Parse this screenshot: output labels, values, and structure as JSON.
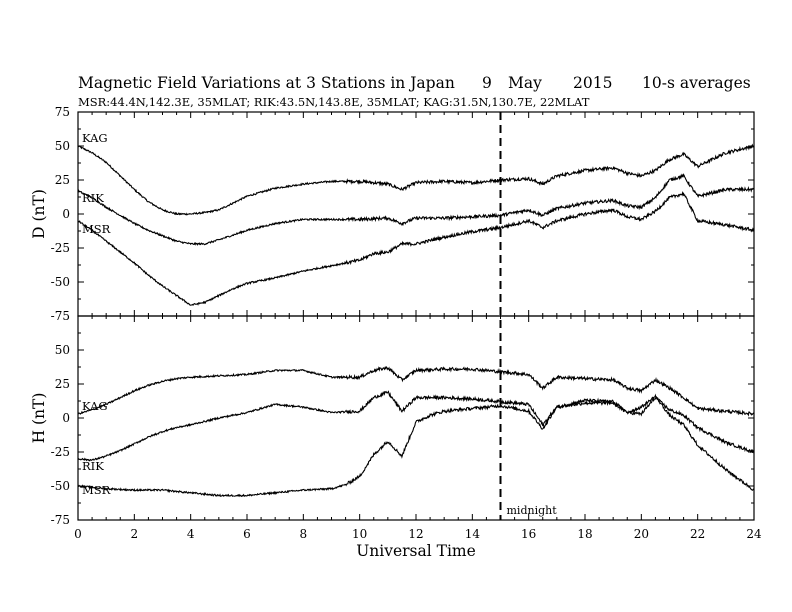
{
  "chart_data": {
    "type": "line",
    "title": "Magnetic Field Variations at 3 Stations in Japan",
    "date_label": {
      "day": "9",
      "month": "May",
      "year": "2015"
    },
    "averaging": "10-s averages",
    "stations_line": "MSR:44.4N,142.3E, 35MLAT;  RIK:43.5N,143.8E, 35MLAT;  KAG:31.5N,130.7E, 22MLAT",
    "xlabel": "Universal Time",
    "xlim": [
      0,
      24
    ],
    "x_ticks": [
      "0",
      "2",
      "4",
      "6",
      "8",
      "10",
      "12",
      "14",
      "16",
      "18",
      "20",
      "22",
      "24"
    ],
    "grid": false,
    "marker_line": {
      "x": 15,
      "label": "midnight"
    },
    "panels": [
      {
        "ylabel": "D (nT)",
        "ylim": [
          -75,
          75
        ],
        "y_ticks": [
          "75",
          "50",
          "25",
          "0",
          "-25",
          "-50",
          "-75"
        ],
        "series": [
          {
            "name": "KAG",
            "x": [
              0,
              0.5,
              1,
              1.5,
              2,
              2.5,
              3,
              3.5,
              4,
              4.5,
              5,
              5.5,
              6,
              7,
              8,
              9,
              10,
              11,
              11.5,
              12,
              13,
              14,
              15,
              16,
              16.5,
              17,
              18,
              19,
              19.5,
              20,
              20.5,
              21,
              21.5,
              22,
              23,
              24
            ],
            "y": [
              50,
              45,
              38,
              28,
              18,
              9,
              3,
              0,
              0,
              1,
              3,
              8,
              13,
              19,
              22,
              24,
              24,
              22,
              18,
              23,
              24,
              23,
              25,
              26,
              22,
              28,
              32,
              34,
              30,
              28,
              32,
              40,
              44,
              35,
              45,
              50
            ]
          },
          {
            "name": "RIK",
            "x": [
              0,
              0.5,
              1,
              1.5,
              2,
              2.5,
              3,
              3.5,
              4,
              4.5,
              5,
              6,
              7,
              8,
              9,
              10,
              11,
              11.5,
              12,
              13,
              14,
              15,
              16,
              16.5,
              17,
              18,
              19,
              19.5,
              20,
              20.5,
              21,
              21.5,
              22,
              23,
              24
            ],
            "y": [
              17,
              12,
              5,
              -1,
              -7,
              -12,
              -16,
              -20,
              -22,
              -22,
              -19,
              -12,
              -7,
              -4,
              -4,
              -4,
              -3,
              -7,
              -3,
              -3,
              -2,
              -1,
              3,
              -1,
              4,
              8,
              10,
              6,
              5,
              12,
              25,
              28,
              13,
              18,
              18
            ]
          },
          {
            "name": "MSR",
            "x": [
              0,
              0.5,
              1,
              1.5,
              2,
              2.5,
              3,
              3.5,
              4,
              4.5,
              5,
              5.5,
              6,
              7,
              8,
              9,
              10,
              10.5,
              11,
              11.5,
              12,
              13,
              14,
              15,
              16,
              16.5,
              17,
              18,
              19,
              19.5,
              20,
              20.5,
              21,
              21.5,
              22,
              23,
              24
            ],
            "y": [
              -5,
              -12,
              -20,
              -28,
              -36,
              -45,
              -53,
              -60,
              -67,
              -65,
              -60,
              -55,
              -51,
              -47,
              -42,
              -38,
              -34,
              -29,
              -28,
              -22,
              -22,
              -17,
              -13,
              -10,
              -5,
              -10,
              -5,
              0,
              3,
              -2,
              -4,
              2,
              12,
              15,
              -5,
              -8,
              -12
            ]
          }
        ]
      },
      {
        "ylabel": "H (nT)",
        "ylim": [
          -75,
          75
        ],
        "y_ticks": [
          "",
          "50",
          "25",
          "0",
          "-25",
          "-50",
          "-75"
        ],
        "series": [
          {
            "name": "KAG",
            "x": [
              0,
              0.5,
              1,
              1.5,
              2,
              2.5,
              3,
              3.5,
              4,
              5,
              6,
              7,
              8,
              9,
              10,
              10.5,
              11,
              11.5,
              12,
              13,
              14,
              15,
              16,
              16.5,
              17,
              18,
              19,
              19.5,
              20,
              20.5,
              21,
              21.5,
              22,
              23,
              24
            ],
            "y": [
              3,
              6,
              10,
              15,
              20,
              24,
              27,
              29,
              30,
              31,
              32,
              35,
              35,
              30,
              30,
              35,
              37,
              28,
              35,
              36,
              36,
              34,
              32,
              22,
              30,
              29,
              28,
              22,
              20,
              28,
              22,
              15,
              7,
              5,
              3
            ]
          },
          {
            "name": "RIK",
            "x": [
              0,
              0.5,
              1,
              1.5,
              2,
              2.5,
              3,
              3.5,
              4,
              5,
              6,
              7,
              8,
              9,
              10,
              10.5,
              11,
              11.5,
              12,
              13,
              14,
              15,
              16,
              16.5,
              17,
              18,
              19,
              19.5,
              20,
              20.5,
              21,
              21.5,
              22,
              23,
              24
            ],
            "y": [
              -30,
              -31,
              -28,
              -24,
              -19,
              -14,
              -10,
              -7,
              -5,
              0,
              4,
              10,
              8,
              4,
              5,
              15,
              19,
              5,
              15,
              15,
              14,
              12,
              10,
              -5,
              8,
              13,
              12,
              4,
              3,
              15,
              6,
              2,
              -7,
              -18,
              -25
            ]
          },
          {
            "name": "MSR",
            "x": [
              0,
              1,
              2,
              3,
              4,
              5,
              6,
              7,
              8,
              9,
              9.5,
              10,
              10.5,
              11,
              11.5,
              12,
              12.5,
              13,
              14,
              15,
              16,
              16.5,
              17,
              18,
              19,
              19.5,
              20,
              20.5,
              21,
              21.5,
              22,
              23,
              24
            ],
            "y": [
              -50,
              -52,
              -53,
              -53,
              -55,
              -57,
              -57,
              -55,
              -53,
              -52,
              -49,
              -43,
              -27,
              -17,
              -28,
              -3,
              2,
              5,
              7,
              9,
              5,
              -8,
              8,
              11,
              11,
              4,
              8,
              16,
              2,
              -5,
              -20,
              -38,
              -53
            ]
          }
        ]
      }
    ]
  }
}
